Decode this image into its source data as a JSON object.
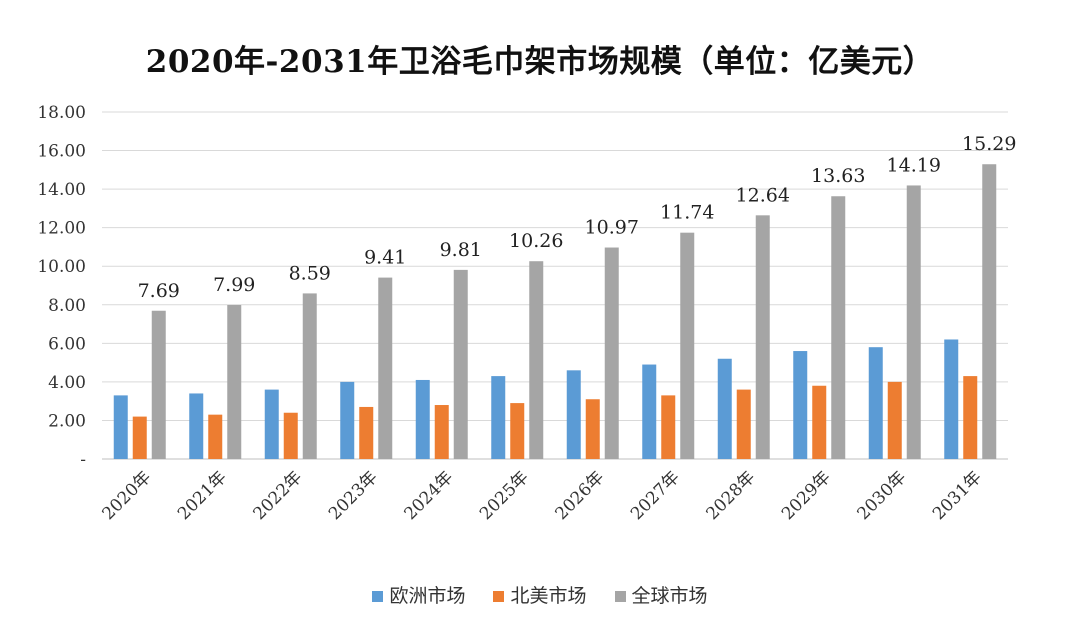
{
  "chart_data": {
    "type": "bar",
    "title": "2020年-2031年卫浴毛巾架市场规模（单位：亿美元）",
    "categories": [
      "2020年",
      "2021年",
      "2022年",
      "2023年",
      "2024年",
      "2025年",
      "2026年",
      "2027年",
      "2028年",
      "2029年",
      "2030年",
      "2031年"
    ],
    "series": [
      {
        "name": "欧洲市场",
        "color": "#5b9bd5",
        "values": [
          3.3,
          3.4,
          3.6,
          4.0,
          4.1,
          4.3,
          4.6,
          4.9,
          5.2,
          5.6,
          5.8,
          6.2
        ],
        "labels": []
      },
      {
        "name": "北美市场",
        "color": "#ed7d31",
        "values": [
          2.2,
          2.3,
          2.4,
          2.7,
          2.8,
          2.9,
          3.1,
          3.3,
          3.6,
          3.8,
          4.0,
          4.3
        ],
        "labels": []
      },
      {
        "name": "全球市场",
        "color": "#a5a5a5",
        "values": [
          7.69,
          7.99,
          8.59,
          9.41,
          9.81,
          10.26,
          10.97,
          11.74,
          12.64,
          13.63,
          14.19,
          15.29
        ],
        "labels": [
          "7.69",
          "7.99",
          "8.59",
          "9.41",
          "9.81",
          "10.26",
          "10.97",
          "11.74",
          "12.64",
          "13.63",
          "14.19",
          "15.29"
        ]
      }
    ],
    "ylim": [
      0,
      18
    ],
    "ytick_labels": [
      "-",
      "2.00",
      "4.00",
      "6.00",
      "8.00",
      "10.00",
      "12.00",
      "14.00",
      "16.00",
      "18.00"
    ],
    "xlabel": "",
    "ylabel": "",
    "grid": "horizontal",
    "legend_position": "bottom"
  }
}
